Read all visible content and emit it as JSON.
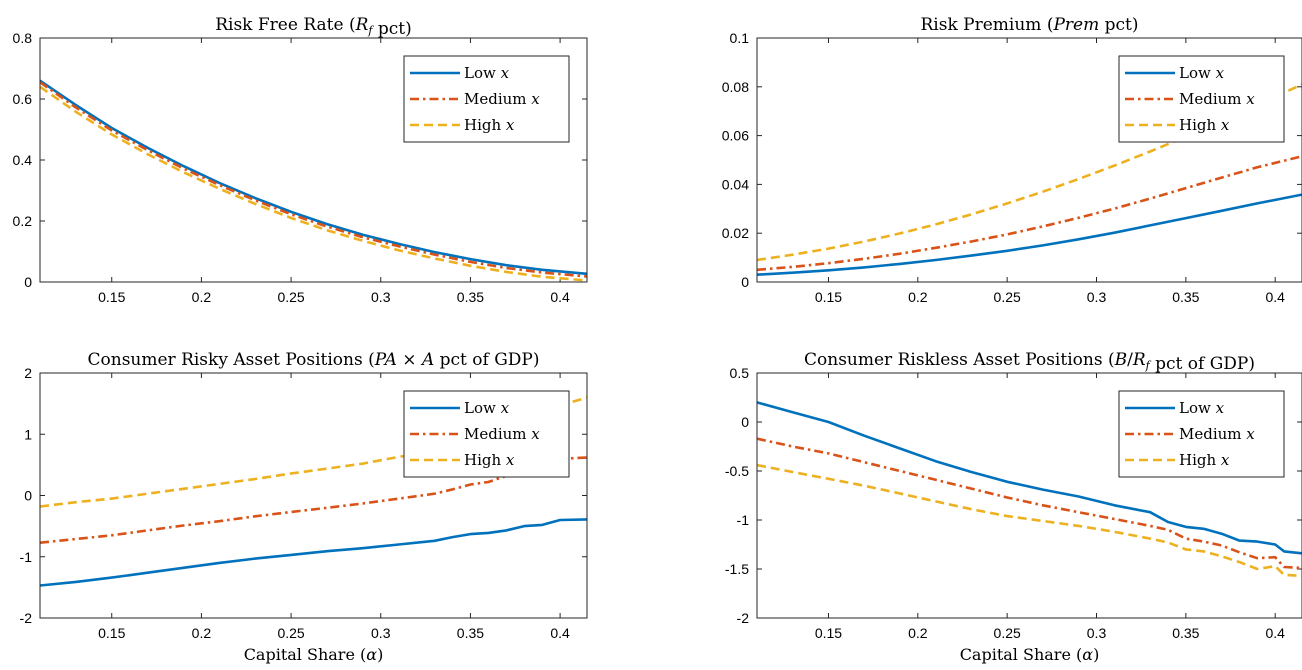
{
  "chart_data": [
    {
      "type": "line",
      "title": "Risk Free Rate (R_f pct)",
      "title_parts": [
        {
          "text": "Risk Free Rate (",
          "style": "normal"
        },
        {
          "text": "R",
          "style": "italic"
        },
        {
          "text": "f",
          "style": "sub"
        },
        {
          "text": " pct)",
          "style": "normal"
        }
      ],
      "xlabel": "",
      "ylabel": "",
      "xlim": [
        0.11,
        0.415
      ],
      "ylim": [
        0,
        0.8
      ],
      "xticks": [
        0.15,
        0.2,
        0.25,
        0.3,
        0.35,
        0.4
      ],
      "yticks": [
        0,
        0.2,
        0.4,
        0.6,
        0.8
      ],
      "legend_position": "top-right",
      "x": [
        0.11,
        0.13,
        0.15,
        0.17,
        0.19,
        0.21,
        0.23,
        0.25,
        0.27,
        0.29,
        0.31,
        0.33,
        0.35,
        0.37,
        0.39,
        0.415
      ],
      "series": [
        {
          "name": "Low x",
          "style": "solid",
          "color": "#0072BD",
          "values": [
            0.66,
            0.58,
            0.505,
            0.44,
            0.38,
            0.325,
            0.275,
            0.23,
            0.19,
            0.155,
            0.125,
            0.098,
            0.075,
            0.055,
            0.04,
            0.027
          ]
        },
        {
          "name": "Medium x",
          "style": "dashdot",
          "color": "#D95319",
          "values": [
            0.655,
            0.572,
            0.497,
            0.432,
            0.372,
            0.318,
            0.268,
            0.222,
            0.182,
            0.147,
            0.117,
            0.09,
            0.066,
            0.046,
            0.031,
            0.018
          ]
        },
        {
          "name": "High x",
          "style": "dashed",
          "color": "#EDB120",
          "values": [
            0.64,
            0.558,
            0.484,
            0.419,
            0.36,
            0.306,
            0.256,
            0.21,
            0.17,
            0.135,
            0.104,
            0.077,
            0.053,
            0.033,
            0.017,
            0.005
          ]
        }
      ]
    },
    {
      "type": "line",
      "title": "Risk Premium (Prem pct)",
      "title_parts": [
        {
          "text": "Risk Premium (",
          "style": "normal"
        },
        {
          "text": "Prem",
          "style": "italic"
        },
        {
          "text": " pct)",
          "style": "normal"
        }
      ],
      "xlabel": "",
      "ylabel": "",
      "xlim": [
        0.11,
        0.415
      ],
      "ylim": [
        0,
        0.1
      ],
      "xticks": [
        0.15,
        0.2,
        0.25,
        0.3,
        0.35,
        0.4
      ],
      "yticks": [
        0,
        0.02,
        0.04,
        0.06,
        0.08,
        0.1
      ],
      "legend_position": "top-right",
      "x": [
        0.11,
        0.13,
        0.15,
        0.17,
        0.19,
        0.21,
        0.23,
        0.25,
        0.27,
        0.29,
        0.31,
        0.33,
        0.35,
        0.37,
        0.39,
        0.415
      ],
      "series": [
        {
          "name": "Low x",
          "style": "solid",
          "color": "#0072BD",
          "values": [
            0.003,
            0.0038,
            0.0048,
            0.006,
            0.0074,
            0.009,
            0.0108,
            0.0128,
            0.015,
            0.0175,
            0.0202,
            0.0232,
            0.0262,
            0.0292,
            0.0322,
            0.0358
          ]
        },
        {
          "name": "Medium x",
          "style": "dashdot",
          "color": "#D95319",
          "values": [
            0.005,
            0.0062,
            0.0077,
            0.0095,
            0.0116,
            0.014,
            0.0166,
            0.0195,
            0.0228,
            0.0263,
            0.0301,
            0.0342,
            0.0385,
            0.0428,
            0.047,
            0.0515
          ]
        },
        {
          "name": "High x",
          "style": "dashed",
          "color": "#EDB120",
          "values": [
            0.009,
            0.0112,
            0.0137,
            0.0166,
            0.0199,
            0.0236,
            0.0277,
            0.0322,
            0.037,
            0.0422,
            0.0477,
            0.0535,
            0.0596,
            0.066,
            0.0725,
            0.081
          ]
        }
      ]
    },
    {
      "type": "line",
      "title": "Consumer Risky Asset Positions (PA × A pct of GDP)",
      "title_parts": [
        {
          "text": "Consumer Risky Asset Positions (",
          "style": "normal"
        },
        {
          "text": "PA",
          "style": "italic"
        },
        {
          "text": " × ",
          "style": "normal"
        },
        {
          "text": "A",
          "style": "italic"
        },
        {
          "text": " pct of GDP)",
          "style": "normal"
        }
      ],
      "xlabel": "Capital Share (α)",
      "xlabel_parts": [
        {
          "text": "Capital Share (",
          "style": "normal"
        },
        {
          "text": "α",
          "style": "italic"
        },
        {
          "text": ")",
          "style": "normal"
        }
      ],
      "ylabel": "",
      "xlim": [
        0.11,
        0.415
      ],
      "ylim": [
        -2,
        2
      ],
      "xticks": [
        0.15,
        0.2,
        0.25,
        0.3,
        0.35,
        0.4
      ],
      "yticks": [
        -2,
        -1,
        0,
        1,
        2
      ],
      "legend_position": "top-right",
      "x": [
        0.11,
        0.13,
        0.15,
        0.17,
        0.19,
        0.21,
        0.23,
        0.25,
        0.27,
        0.29,
        0.31,
        0.33,
        0.34,
        0.35,
        0.36,
        0.37,
        0.38,
        0.39,
        0.4,
        0.415
      ],
      "series": [
        {
          "name": "Low x",
          "style": "solid",
          "color": "#0072BD",
          "values": [
            -1.47,
            -1.41,
            -1.34,
            -1.26,
            -1.18,
            -1.1,
            -1.03,
            -0.97,
            -0.91,
            -0.86,
            -0.8,
            -0.74,
            -0.68,
            -0.63,
            -0.61,
            -0.57,
            -0.5,
            -0.48,
            -0.4,
            -0.39
          ]
        },
        {
          "name": "Medium x",
          "style": "dashdot",
          "color": "#D95319",
          "values": [
            -0.77,
            -0.71,
            -0.65,
            -0.57,
            -0.49,
            -0.42,
            -0.34,
            -0.27,
            -0.2,
            -0.13,
            -0.05,
            0.03,
            0.1,
            0.18,
            0.22,
            0.32,
            0.4,
            0.45,
            0.6,
            0.62
          ]
        },
        {
          "name": "High x",
          "style": "dashed",
          "color": "#EDB120",
          "values": [
            -0.18,
            -0.11,
            -0.05,
            0.03,
            0.11,
            0.19,
            0.27,
            0.36,
            0.44,
            0.52,
            0.63,
            0.72,
            0.79,
            0.87,
            0.95,
            1.05,
            1.2,
            1.3,
            1.47,
            1.6
          ]
        }
      ]
    },
    {
      "type": "line",
      "title": "Consumer Riskless Asset Positions (B/R_f pct of GDP)",
      "title_parts": [
        {
          "text": "Consumer Riskless Asset Positions (",
          "style": "normal"
        },
        {
          "text": "B",
          "style": "italic"
        },
        {
          "text": "/",
          "style": "normal"
        },
        {
          "text": "R",
          "style": "italic"
        },
        {
          "text": "f",
          "style": "sub"
        },
        {
          "text": " pct of GDP)",
          "style": "normal"
        }
      ],
      "xlabel": "Capital Share (α)",
      "xlabel_parts": [
        {
          "text": "Capital Share (",
          "style": "normal"
        },
        {
          "text": "α",
          "style": "italic"
        },
        {
          "text": ")",
          "style": "normal"
        }
      ],
      "ylabel": "",
      "xlim": [
        0.11,
        0.415
      ],
      "ylim": [
        -2,
        0.5
      ],
      "xticks": [
        0.15,
        0.2,
        0.25,
        0.3,
        0.35,
        0.4
      ],
      "yticks": [
        -2,
        -1.5,
        -1,
        -0.5,
        0,
        0.5
      ],
      "legend_position": "top-right",
      "x": [
        0.11,
        0.13,
        0.15,
        0.17,
        0.19,
        0.21,
        0.23,
        0.25,
        0.27,
        0.29,
        0.31,
        0.33,
        0.34,
        0.35,
        0.36,
        0.37,
        0.38,
        0.39,
        0.4,
        0.405,
        0.415
      ],
      "series": [
        {
          "name": "Low x",
          "style": "solid",
          "color": "#0072BD",
          "values": [
            0.2,
            0.1,
            0.0,
            -0.14,
            -0.27,
            -0.4,
            -0.51,
            -0.61,
            -0.69,
            -0.76,
            -0.85,
            -0.92,
            -1.02,
            -1.07,
            -1.09,
            -1.14,
            -1.21,
            -1.22,
            -1.25,
            -1.32,
            -1.34
          ]
        },
        {
          "name": "Medium x",
          "style": "dashdot",
          "color": "#D95319",
          "values": [
            -0.17,
            -0.25,
            -0.32,
            -0.41,
            -0.5,
            -0.59,
            -0.68,
            -0.77,
            -0.85,
            -0.92,
            -0.99,
            -1.06,
            -1.1,
            -1.19,
            -1.22,
            -1.26,
            -1.33,
            -1.39,
            -1.38,
            -1.48,
            -1.49
          ]
        },
        {
          "name": "High x",
          "style": "dashed",
          "color": "#EDB120",
          "values": [
            -0.44,
            -0.51,
            -0.58,
            -0.65,
            -0.73,
            -0.81,
            -0.89,
            -0.96,
            -1.01,
            -1.06,
            -1.12,
            -1.19,
            -1.23,
            -1.3,
            -1.32,
            -1.37,
            -1.43,
            -1.5,
            -1.47,
            -1.56,
            -1.57
          ]
        }
      ]
    }
  ]
}
